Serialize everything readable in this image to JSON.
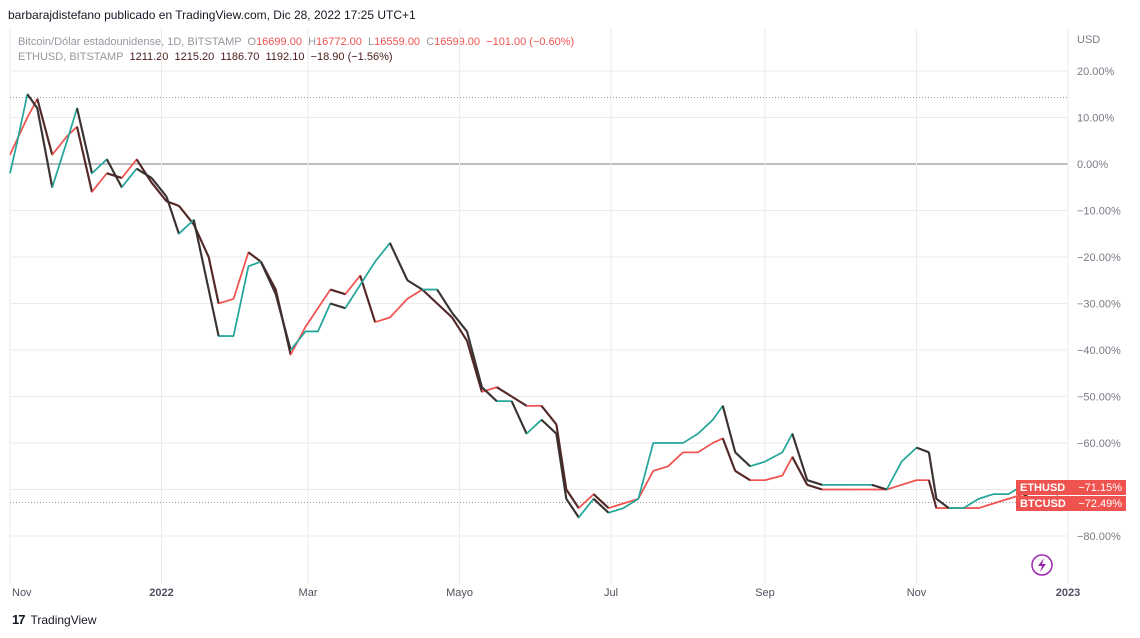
{
  "header": {
    "publisher_line": "barbarajdistefano publicado en TradingView.com, Dic 28, 2022 17:25 UTC+1"
  },
  "legend": {
    "btc": {
      "symbol": "Bitcoin/Dólar estadounidense, 1D, BITSTAMP",
      "o_label": "O",
      "o": "16699.00",
      "h_label": "H",
      "h": "16772.00",
      "l_label": "L",
      "l": "16559.00",
      "c_label": "C",
      "c": "16599.00",
      "change": "−101.00 (−0.60%)"
    },
    "eth": {
      "symbol": "ETHUSD, BITSTAMP",
      "o": "1211.20",
      "h": "1215.20",
      "l": "1186.70",
      "c": "1192.10",
      "change": "−18.90 (−1.56%)"
    }
  },
  "footer": {
    "brand": "TradingView"
  },
  "colors": {
    "up": "#26a69a",
    "down": "#ef5350",
    "dark_candle": "#3b1f1f",
    "grid": "#ebebeb",
    "axis_text": "#787b86",
    "baseline": "#787b86",
    "badge": "#ef5350",
    "flash": "#9c27b0"
  },
  "chart_data": {
    "type": "line",
    "unit_label": "USD",
    "y_axis_mode": "percent",
    "ylim": [
      -85,
      25
    ],
    "y_ticks": [
      20,
      10,
      0,
      -10,
      -20,
      -30,
      -40,
      -50,
      -60,
      -70,
      -80
    ],
    "y_tick_labels": [
      "20.00%",
      "10.00%",
      "0.00%",
      "−10.00%",
      "−20.00%",
      "−30.00%",
      "−40.00%",
      "−50.00%",
      "−60.00%",
      "−70.00%",
      "−80.00%"
    ],
    "x_range": [
      "2021-11-01",
      "2023-01-01"
    ],
    "x_ticks": [
      "2021-11-01",
      "2022-01-01",
      "2022-03-01",
      "2022-05-01",
      "2022-07-01",
      "2022-09-01",
      "2022-11-01",
      "2023-01-01"
    ],
    "x_tick_labels": [
      "Nov",
      "2022",
      "Mar",
      "Mayo",
      "Jul",
      "Sep",
      "Nov",
      "2023"
    ],
    "reference_lines": [
      14.3,
      -72.8
    ],
    "series": [
      {
        "name": "BTCUSD",
        "badge_value": "−72.49%",
        "points": [
          [
            "2021-11-01",
            2
          ],
          [
            "2021-11-08",
            10
          ],
          [
            "2021-11-12",
            14
          ],
          [
            "2021-11-18",
            2
          ],
          [
            "2021-11-24",
            6
          ],
          [
            "2021-11-28",
            8
          ],
          [
            "2021-12-04",
            -6
          ],
          [
            "2021-12-10",
            -2
          ],
          [
            "2021-12-16",
            -3
          ],
          [
            "2021-12-22",
            1
          ],
          [
            "2021-12-28",
            -4
          ],
          [
            "2022-01-03",
            -8
          ],
          [
            "2022-01-08",
            -9
          ],
          [
            "2022-01-14",
            -13
          ],
          [
            "2022-01-20",
            -20
          ],
          [
            "2022-01-24",
            -30
          ],
          [
            "2022-01-30",
            -29
          ],
          [
            "2022-02-05",
            -19
          ],
          [
            "2022-02-10",
            -21
          ],
          [
            "2022-02-16",
            -27
          ],
          [
            "2022-02-22",
            -41
          ],
          [
            "2022-02-28",
            -35
          ],
          [
            "2022-03-05",
            -31
          ],
          [
            "2022-03-10",
            -27
          ],
          [
            "2022-03-16",
            -28
          ],
          [
            "2022-03-22",
            -24
          ],
          [
            "2022-03-28",
            -34
          ],
          [
            "2022-04-03",
            -33
          ],
          [
            "2022-04-10",
            -29
          ],
          [
            "2022-04-16",
            -27
          ],
          [
            "2022-04-22",
            -30
          ],
          [
            "2022-04-28",
            -33
          ],
          [
            "2022-05-04",
            -38
          ],
          [
            "2022-05-10",
            -49
          ],
          [
            "2022-05-16",
            -48
          ],
          [
            "2022-05-22",
            -50
          ],
          [
            "2022-05-28",
            -52
          ],
          [
            "2022-06-03",
            -52
          ],
          [
            "2022-06-09",
            -56
          ],
          [
            "2022-06-13",
            -70
          ],
          [
            "2022-06-18",
            -74
          ],
          [
            "2022-06-24",
            -71
          ],
          [
            "2022-06-30",
            -74
          ],
          [
            "2022-07-06",
            -73
          ],
          [
            "2022-07-12",
            -72
          ],
          [
            "2022-07-18",
            -66
          ],
          [
            "2022-07-24",
            -65
          ],
          [
            "2022-07-30",
            -62
          ],
          [
            "2022-08-05",
            -62
          ],
          [
            "2022-08-11",
            -60
          ],
          [
            "2022-08-15",
            -59
          ],
          [
            "2022-08-20",
            -66
          ],
          [
            "2022-08-26",
            -68
          ],
          [
            "2022-09-01",
            -68
          ],
          [
            "2022-09-08",
            -67
          ],
          [
            "2022-09-12",
            -63
          ],
          [
            "2022-09-18",
            -69
          ],
          [
            "2022-09-24",
            -70
          ],
          [
            "2022-09-30",
            -70
          ],
          [
            "2022-10-06",
            -70
          ],
          [
            "2022-10-14",
            -70
          ],
          [
            "2022-10-20",
            -70
          ],
          [
            "2022-10-26",
            -69
          ],
          [
            "2022-11-01",
            -68
          ],
          [
            "2022-11-06",
            -68
          ],
          [
            "2022-11-09",
            -74
          ],
          [
            "2022-11-14",
            -74
          ],
          [
            "2022-11-20",
            -74
          ],
          [
            "2022-11-26",
            -74
          ],
          [
            "2022-12-02",
            -73
          ],
          [
            "2022-12-08",
            -72
          ],
          [
            "2022-12-14",
            -71
          ],
          [
            "2022-12-20",
            -73
          ],
          [
            "2022-12-26",
            -72.5
          ],
          [
            "2022-12-28",
            -72.49
          ]
        ]
      },
      {
        "name": "ETHUSD",
        "badge_value": "−71.15%",
        "points": [
          [
            "2021-11-01",
            -2
          ],
          [
            "2021-11-04",
            5
          ],
          [
            "2021-11-08",
            15
          ],
          [
            "2021-11-12",
            12
          ],
          [
            "2021-11-18",
            -5
          ],
          [
            "2021-11-24",
            5
          ],
          [
            "2021-11-28",
            12
          ],
          [
            "2021-12-04",
            -2
          ],
          [
            "2021-12-10",
            1
          ],
          [
            "2021-12-16",
            -5
          ],
          [
            "2021-12-22",
            -1
          ],
          [
            "2021-12-28",
            -3
          ],
          [
            "2022-01-03",
            -7
          ],
          [
            "2022-01-08",
            -15
          ],
          [
            "2022-01-14",
            -12
          ],
          [
            "2022-01-20",
            -27
          ],
          [
            "2022-01-24",
            -37
          ],
          [
            "2022-01-30",
            -37
          ],
          [
            "2022-02-05",
            -22
          ],
          [
            "2022-02-10",
            -21
          ],
          [
            "2022-02-16",
            -28
          ],
          [
            "2022-02-22",
            -40
          ],
          [
            "2022-02-28",
            -36
          ],
          [
            "2022-03-05",
            -36
          ],
          [
            "2022-03-10",
            -30
          ],
          [
            "2022-03-16",
            -31
          ],
          [
            "2022-03-22",
            -26
          ],
          [
            "2022-03-28",
            -21
          ],
          [
            "2022-04-03",
            -17
          ],
          [
            "2022-04-10",
            -25
          ],
          [
            "2022-04-16",
            -27
          ],
          [
            "2022-04-22",
            -27
          ],
          [
            "2022-04-28",
            -32
          ],
          [
            "2022-05-04",
            -36
          ],
          [
            "2022-05-10",
            -48
          ],
          [
            "2022-05-16",
            -51
          ],
          [
            "2022-05-22",
            -51
          ],
          [
            "2022-05-28",
            -58
          ],
          [
            "2022-06-03",
            -55
          ],
          [
            "2022-06-09",
            -58
          ],
          [
            "2022-06-13",
            -72
          ],
          [
            "2022-06-18",
            -76
          ],
          [
            "2022-06-24",
            -72
          ],
          [
            "2022-06-30",
            -75
          ],
          [
            "2022-07-06",
            -74
          ],
          [
            "2022-07-12",
            -72
          ],
          [
            "2022-07-18",
            -60
          ],
          [
            "2022-07-24",
            -60
          ],
          [
            "2022-07-30",
            -60
          ],
          [
            "2022-08-05",
            -58
          ],
          [
            "2022-08-11",
            -55
          ],
          [
            "2022-08-15",
            -52
          ],
          [
            "2022-08-20",
            -62
          ],
          [
            "2022-08-26",
            -65
          ],
          [
            "2022-09-01",
            -64
          ],
          [
            "2022-09-08",
            -62
          ],
          [
            "2022-09-12",
            -58
          ],
          [
            "2022-09-18",
            -68
          ],
          [
            "2022-09-24",
            -69
          ],
          [
            "2022-09-30",
            -69
          ],
          [
            "2022-10-06",
            -69
          ],
          [
            "2022-10-14",
            -69
          ],
          [
            "2022-10-20",
            -70
          ],
          [
            "2022-10-26",
            -64
          ],
          [
            "2022-11-01",
            -61
          ],
          [
            "2022-11-06",
            -62
          ],
          [
            "2022-11-09",
            -72
          ],
          [
            "2022-11-14",
            -74
          ],
          [
            "2022-11-20",
            -74
          ],
          [
            "2022-11-26",
            -72
          ],
          [
            "2022-12-02",
            -71
          ],
          [
            "2022-12-08",
            -71
          ],
          [
            "2022-12-14",
            -69
          ],
          [
            "2022-12-20",
            -71
          ],
          [
            "2022-12-26",
            -70.5
          ],
          [
            "2022-12-28",
            -71.15
          ]
        ]
      }
    ]
  }
}
